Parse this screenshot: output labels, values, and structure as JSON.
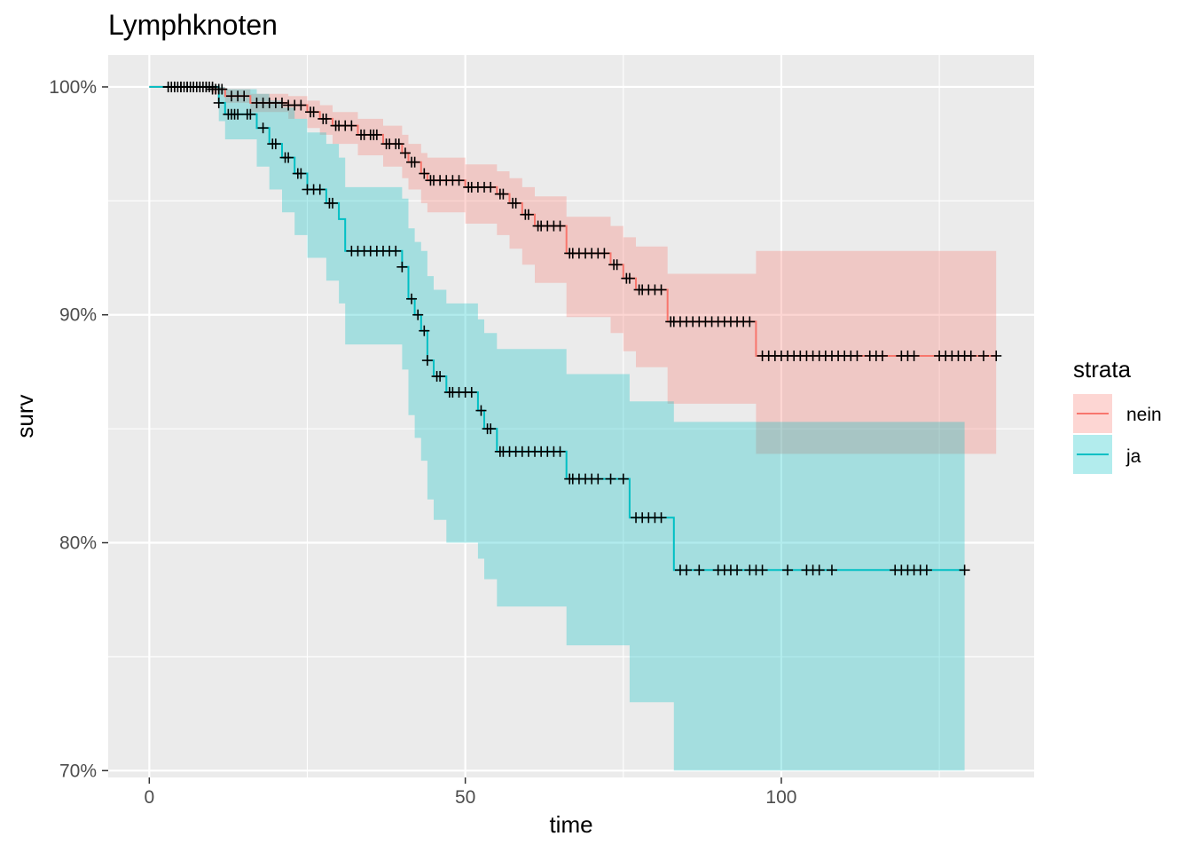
{
  "chart_data": {
    "type": "line",
    "subtype": "kaplan-meier",
    "title": "Lymphknoten",
    "xlabel": "time",
    "ylabel": "surv",
    "xlim": [
      -6.5,
      140
    ],
    "ylim": [
      69.7,
      101.4
    ],
    "x_ticks": [
      0,
      50,
      100
    ],
    "x_tick_labels": [
      "0",
      "50",
      "100"
    ],
    "y_ticks": [
      70,
      80,
      90,
      100
    ],
    "y_tick_labels": [
      "70%",
      "80%",
      "90%",
      "100%"
    ],
    "grid": true,
    "legend": {
      "title": "strata",
      "position": "right",
      "entries": [
        "nein",
        "ja"
      ]
    },
    "series": [
      {
        "name": "nein",
        "color": "#F8766D",
        "x": [
          0,
          10,
          12,
          16,
          22,
          25,
          27,
          29,
          33,
          37,
          40,
          41,
          43,
          44,
          50,
          55,
          57,
          59,
          61,
          66,
          73,
          75,
          77,
          82,
          96,
          134
        ],
        "y": [
          100,
          99.9,
          99.6,
          99.3,
          99.2,
          98.9,
          98.6,
          98.3,
          97.9,
          97.5,
          97.1,
          96.7,
          96.2,
          95.9,
          95.6,
          95.3,
          94.9,
          94.4,
          93.9,
          92.7,
          92.2,
          91.6,
          91.1,
          89.7,
          88.2,
          88.2
        ],
        "lower": [
          100,
          99.7,
          99.3,
          98.9,
          98.6,
          98.2,
          97.9,
          97.5,
          97.0,
          96.5,
          96.0,
          95.5,
          94.9,
          94.5,
          94.0,
          93.5,
          92.9,
          92.2,
          91.4,
          89.9,
          89.2,
          88.4,
          87.7,
          86.1,
          83.9,
          83.9
        ],
        "upper": [
          100,
          100,
          99.9,
          99.7,
          99.6,
          99.4,
          99.2,
          98.9,
          98.6,
          98.3,
          97.9,
          97.5,
          97.1,
          96.9,
          96.6,
          96.3,
          96.0,
          95.6,
          95.2,
          94.3,
          93.9,
          93.4,
          93.0,
          91.8,
          92.8,
          92.8
        ],
        "censor_x": [
          3,
          3.5,
          4,
          4.5,
          5,
          5.5,
          6,
          6.5,
          7,
          7.5,
          8,
          8.5,
          9,
          9.5,
          10,
          10.5,
          11,
          11.5,
          13,
          14,
          15,
          17,
          18,
          19,
          20,
          21,
          22,
          23,
          24,
          25.5,
          26,
          27.5,
          28,
          29.5,
          30,
          31,
          32,
          33.5,
          34,
          35,
          35.5,
          36,
          37.5,
          38,
          39,
          39.5,
          40.5,
          41.5,
          42,
          43.5,
          44.5,
          45,
          46,
          47,
          48,
          49,
          50.5,
          51,
          52,
          53,
          54,
          55.5,
          56,
          57.5,
          58,
          59.5,
          60,
          61.5,
          62,
          63,
          64,
          65,
          66.5,
          67,
          68,
          69,
          70,
          71,
          72,
          73.5,
          74,
          75.5,
          76,
          77.5,
          78,
          79,
          80,
          81,
          82.5,
          83,
          84,
          85,
          86,
          87,
          88,
          89,
          90,
          91,
          92,
          93,
          94,
          95,
          97,
          98,
          99,
          100,
          101,
          102,
          103,
          104,
          105,
          106,
          107,
          108,
          109,
          110,
          111,
          112,
          114,
          115,
          116,
          119,
          120,
          121,
          125,
          126,
          127,
          128,
          129,
          130,
          132,
          134
        ]
      },
      {
        "name": "ja",
        "color": "#00BFC4",
        "x": [
          0,
          11,
          12,
          17,
          19,
          21,
          23,
          25,
          28,
          30,
          31,
          40,
          41,
          42,
          43,
          44,
          45,
          47,
          52,
          53,
          55,
          66,
          76,
          83,
          129
        ],
        "y": [
          100,
          99.3,
          98.8,
          98.2,
          97.5,
          96.9,
          96.2,
          95.5,
          94.9,
          94.2,
          92.8,
          92.1,
          90.7,
          90.0,
          89.3,
          88.0,
          87.3,
          86.6,
          85.8,
          85.0,
          84.0,
          82.8,
          81.1,
          78.8,
          78.8
        ],
        "lower": [
          100,
          98.5,
          97.7,
          96.5,
          95.5,
          94.5,
          93.5,
          92.5,
          91.5,
          90.5,
          88.7,
          87.6,
          85.6,
          84.6,
          83.6,
          81.9,
          81.0,
          80.0,
          79.3,
          78.4,
          77.2,
          75.5,
          73.0,
          70.0,
          70.0
        ],
        "upper": [
          100,
          100,
          99.9,
          99.7,
          99.4,
          99.1,
          98.6,
          98.0,
          97.5,
          96.9,
          95.6,
          95.1,
          93.8,
          93.2,
          92.8,
          91.7,
          91.1,
          90.5,
          89.8,
          89.2,
          88.5,
          87.4,
          86.2,
          85.3,
          85.3
        ],
        "censor_x": [
          3,
          4,
          5,
          6,
          7,
          8,
          9,
          10,
          11,
          12.5,
          13,
          13.5,
          14,
          15.5,
          16,
          18,
          19.5,
          20,
          21.5,
          22,
          23.5,
          24,
          25,
          26,
          27,
          28.5,
          29,
          32,
          33,
          34,
          35,
          36,
          37,
          38,
          39,
          40,
          41.5,
          42.5,
          43.5,
          44,
          45.5,
          46,
          47.5,
          48,
          49,
          50,
          51,
          52.5,
          53.5,
          54,
          55.5,
          56,
          57,
          58,
          59,
          60,
          61,
          62,
          63,
          64,
          65,
          66.5,
          67,
          68,
          69,
          70,
          71,
          73,
          75,
          77,
          78,
          79,
          80,
          81,
          84,
          85,
          87,
          90,
          91,
          92,
          93,
          95,
          96,
          97,
          101,
          104,
          105,
          106,
          108,
          118,
          119,
          120,
          121,
          122,
          123,
          129
        ]
      }
    ]
  }
}
